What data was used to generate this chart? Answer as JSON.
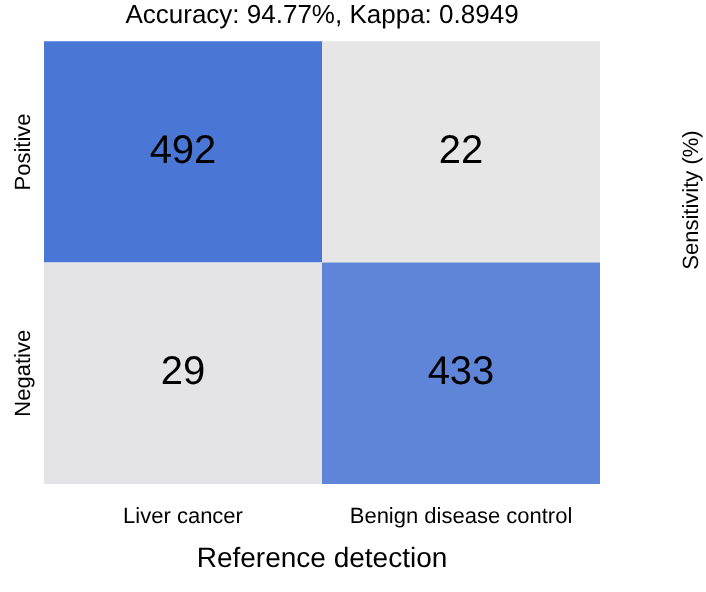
{
  "chart_data": {
    "type": "heatmap",
    "title": "Accuracy: 94.77%, Kappa: 0.8949",
    "xlabel": "Reference detection",
    "categories": [
      "Liver cancer",
      "Benign disease control"
    ],
    "y_categories": [
      "Positive",
      "Negative"
    ],
    "cells": [
      [
        492,
        22
      ],
      [
        29,
        433
      ]
    ],
    "colors": [
      "#e6e6e6",
      "#4a77d6"
    ],
    "data_labels": true,
    "annotations": [
      "Sensitivity (%)"
    ]
  }
}
